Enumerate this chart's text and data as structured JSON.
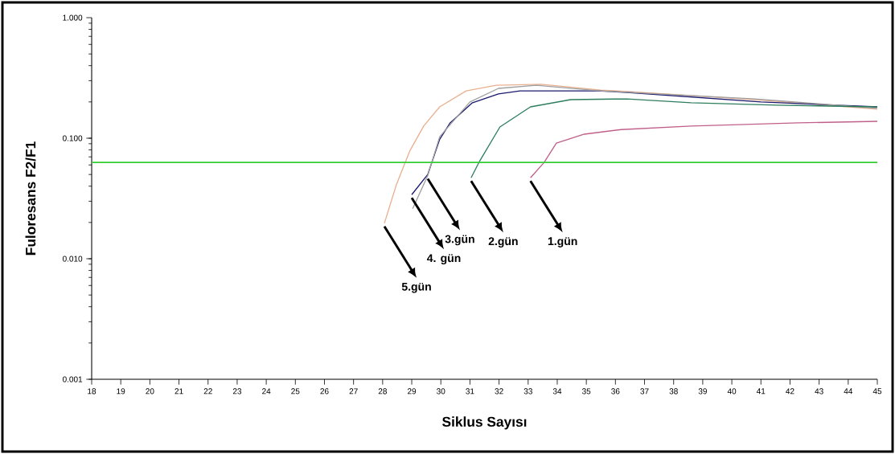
{
  "chart_data": {
    "type": "line",
    "xlabel": "Siklus Sayısı",
    "ylabel": "Fuloresans F2/F1",
    "log": "y",
    "xlim": [
      18,
      45
    ],
    "ylim": [
      0.001,
      1
    ],
    "xticks": [
      18,
      19,
      20,
      21,
      22,
      23,
      24,
      25,
      26,
      27,
      28,
      29,
      30,
      31,
      32,
      33,
      34,
      35,
      36,
      37,
      38,
      39,
      40,
      41,
      42,
      43,
      44,
      45
    ],
    "yticks": [
      {
        "value": 0.001,
        "label": "0.001"
      },
      {
        "value": 0.01,
        "label": "0.010"
      },
      {
        "value": 0.1,
        "label": "0.100"
      },
      {
        "value": 1,
        "label": "1.000"
      }
    ],
    "marker": "none",
    "line_style": "solid",
    "series": [
      {
        "color": "#e8b090",
        "x": [
          28.06,
          28.47,
          28.94,
          29.41,
          29.96,
          30.87,
          31.9,
          33.44,
          35.49,
          36.4,
          40.8,
          45
        ],
        "values": [
          0.0197,
          0.041,
          0.079,
          0.126,
          0.182,
          0.247,
          0.275,
          0.28,
          0.251,
          0.244,
          0.209,
          0.174
        ]
      },
      {
        "color": "#1a1a6e",
        "x": [
          29.0,
          29.55,
          29.96,
          30.32,
          31.07,
          31.98,
          32.72,
          35.38,
          36.4,
          41.0,
          45
        ],
        "values": [
          0.034,
          0.05,
          0.098,
          0.134,
          0.196,
          0.233,
          0.247,
          0.247,
          0.24,
          0.2,
          0.182
        ]
      },
      {
        "color": "#a0a0a0",
        "x": [
          29.03,
          29.55,
          29.96,
          31.0,
          31.98,
          33.28,
          35.49,
          40.8,
          45
        ],
        "values": [
          0.026,
          0.049,
          0.103,
          0.2,
          0.259,
          0.275,
          0.247,
          0.212,
          0.177
        ]
      },
      {
        "color": "#2e7d5e",
        "x": [
          31.04,
          31.34,
          32.03,
          33.08,
          34.46,
          36.4,
          38.6,
          41.56,
          45
        ],
        "values": [
          0.047,
          0.065,
          0.124,
          0.182,
          0.209,
          0.212,
          0.197,
          0.188,
          0.182
        ]
      },
      {
        "color": "#c0608a",
        "x": [
          33.08,
          33.55,
          33.97,
          34.93,
          36.2,
          38.6,
          42.28,
          45
        ],
        "values": [
          0.047,
          0.063,
          0.091,
          0.108,
          0.118,
          0.126,
          0.134,
          0.138
        ]
      }
    ],
    "ref_lines": [
      {
        "axis": "y",
        "value": 0.063,
        "color": "#33cc33"
      }
    ],
    "annotations": [
      {
        "text": "5.gün",
        "x": 28.06,
        "y": 0.0197
      },
      {
        "text": "4. gün",
        "x": 29.0,
        "y": 0.034
      },
      {
        "text": "3.gün",
        "x": 29.55,
        "y": 0.049
      },
      {
        "text": "2.gün",
        "x": 31.04,
        "y": 0.047
      },
      {
        "text": "1.gün",
        "x": 33.08,
        "y": 0.047
      }
    ]
  }
}
